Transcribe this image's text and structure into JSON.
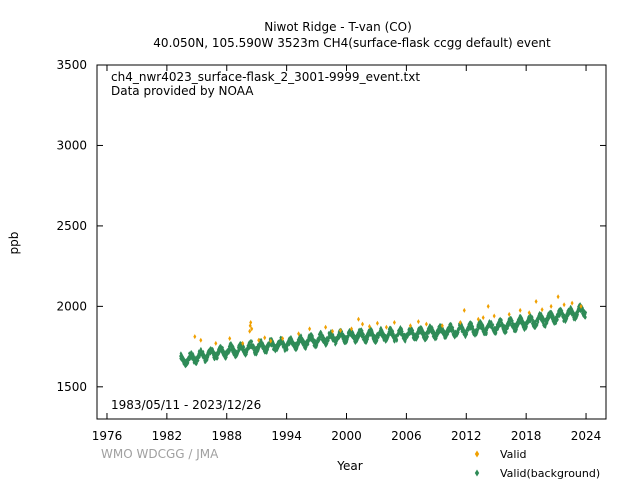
{
  "header": {
    "title_line1": "Niwot Ridge - T-van (CO)",
    "title_line2": "40.050N, 105.590W 3523m     CH4(surface-flask ccgg default) event"
  },
  "annotations": {
    "filename": "ch4_nwr4023_surface-flask_2_3001-9999_event.txt",
    "provider": "Data provided by NOAA",
    "date_range": "1983/05/11 - 2023/12/26",
    "credit": "WMO WDCGG / JMA"
  },
  "colors": {
    "valid": "#f0a000",
    "background": "#2e8b57",
    "axis": "#000000",
    "credit": "#a0a0a0"
  },
  "chart_data": {
    "type": "scatter",
    "xlabel": "Year",
    "ylabel": "ppb",
    "xlim": [
      1975,
      2026
    ],
    "ylim": [
      1300,
      3500
    ],
    "xticks": [
      1976,
      1982,
      1988,
      1994,
      2000,
      2006,
      2012,
      2018,
      2024
    ],
    "yticks": [
      1500,
      2000,
      2500,
      3000,
      3500
    ],
    "legend_position": "bottom-right",
    "grid": false,
    "series": [
      {
        "name": "Valid",
        "marker": "diamond",
        "color": "#f0a000",
        "points": [
          [
            1984.8,
            1812
          ],
          [
            1985.4,
            1790
          ],
          [
            1986.9,
            1770
          ],
          [
            1988.3,
            1800
          ],
          [
            1989.6,
            1770
          ],
          [
            1990.3,
            1845
          ],
          [
            1990.35,
            1880
          ],
          [
            1990.4,
            1900
          ],
          [
            1990.5,
            1860
          ],
          [
            1991.2,
            1790
          ],
          [
            1991.8,
            1805
          ],
          [
            1992.4,
            1785
          ],
          [
            1993.6,
            1800
          ],
          [
            1995.2,
            1830
          ],
          [
            1996.3,
            1860
          ],
          [
            1997.9,
            1870
          ],
          [
            1998.6,
            1845
          ],
          [
            1999.4,
            1850
          ],
          [
            2000.5,
            1860
          ],
          [
            2001.2,
            1920
          ],
          [
            2001.6,
            1890
          ],
          [
            2002.3,
            1875
          ],
          [
            2003.1,
            1895
          ],
          [
            2004.0,
            1870
          ],
          [
            2004.8,
            1900
          ],
          [
            2006.4,
            1880
          ],
          [
            2007.2,
            1905
          ],
          [
            2008.0,
            1890
          ],
          [
            2009.6,
            1880
          ],
          [
            2011.4,
            1900
          ],
          [
            2011.8,
            1975
          ],
          [
            2013.2,
            1920
          ],
          [
            2013.7,
            1930
          ],
          [
            2014.2,
            2000
          ],
          [
            2014.8,
            1940
          ],
          [
            2016.3,
            1950
          ],
          [
            2017.4,
            1975
          ],
          [
            2018.3,
            1960
          ],
          [
            2019.0,
            2030
          ],
          [
            2019.6,
            1980
          ],
          [
            2020.5,
            2000
          ],
          [
            2021.2,
            2060
          ],
          [
            2021.8,
            2010
          ],
          [
            2022.6,
            2020
          ],
          [
            2023.5,
            2000
          ]
        ]
      },
      {
        "name": "Valid(background)",
        "marker": "diamond",
        "color": "#2e8b57",
        "trend": {
          "x_start": 1983.36,
          "x_end": 2023.98,
          "knots": [
            [
              1983.4,
              1660
            ],
            [
              1986,
              1700
            ],
            [
              1990,
              1740
            ],
            [
              1994,
              1765
            ],
            [
              1998,
              1800
            ],
            [
              2000,
              1815
            ],
            [
              2006,
              1825
            ],
            [
              2008,
              1835
            ],
            [
              2012,
              1855
            ],
            [
              2016,
              1880
            ],
            [
              2020,
              1920
            ],
            [
              2024,
              1975
            ]
          ],
          "seasonal_amplitude": 25,
          "scatter": 22
        }
      }
    ]
  }
}
